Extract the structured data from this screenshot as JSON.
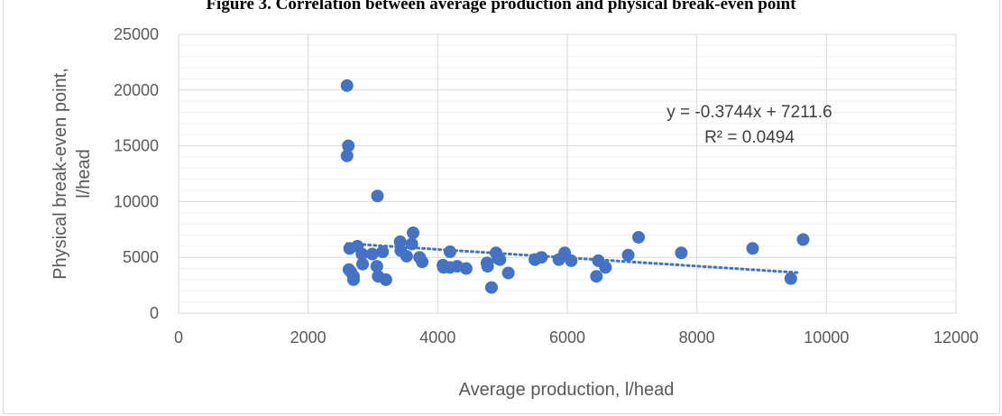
{
  "figure_title": "Figure 3. Correlation between average production and physical break-even point",
  "chart_data": {
    "type": "scatter",
    "title": "",
    "xlabel": "Average production, l/head",
    "ylabel": "Physical break-even point, l/head",
    "xlim": [
      0,
      12000
    ],
    "ylim": [
      0,
      25000
    ],
    "x_ticks": [
      0,
      2000,
      4000,
      6000,
      8000,
      10000,
      12000
    ],
    "y_ticks": [
      0,
      5000,
      10000,
      15000,
      20000,
      25000
    ],
    "grid": true,
    "marker_color": "#4472c4",
    "trendline": {
      "type": "linear",
      "slope": -0.3744,
      "intercept": 7211.6,
      "x_range": [
        2600,
        9600
      ],
      "equation": "y = -0.3744x + 7211.6",
      "r_squared": "R² = 0.0494"
    },
    "points": [
      [
        2600,
        20400
      ],
      [
        2620,
        15000
      ],
      [
        2600,
        14100
      ],
      [
        3070,
        10500
      ],
      [
        2640,
        5800
      ],
      [
        2760,
        6000
      ],
      [
        2830,
        5300
      ],
      [
        2840,
        4400
      ],
      [
        2630,
        3900
      ],
      [
        2660,
        3700
      ],
      [
        2700,
        3300
      ],
      [
        2700,
        3000
      ],
      [
        2990,
        5300
      ],
      [
        3060,
        4200
      ],
      [
        3080,
        3300
      ],
      [
        3150,
        5500
      ],
      [
        3200,
        3000
      ],
      [
        3420,
        6400
      ],
      [
        3430,
        5600
      ],
      [
        3520,
        5100
      ],
      [
        3600,
        6200
      ],
      [
        3620,
        7200
      ],
      [
        3720,
        5000
      ],
      [
        3760,
        4600
      ],
      [
        4080,
        4300
      ],
      [
        4090,
        4100
      ],
      [
        4190,
        5500
      ],
      [
        4190,
        4100
      ],
      [
        4300,
        4200
      ],
      [
        4440,
        4000
      ],
      [
        4760,
        4500
      ],
      [
        4770,
        4200
      ],
      [
        4830,
        2300
      ],
      [
        4900,
        5400
      ],
      [
        4930,
        4900
      ],
      [
        4960,
        4800
      ],
      [
        5090,
        3600
      ],
      [
        5500,
        4800
      ],
      [
        5600,
        5000
      ],
      [
        5870,
        4800
      ],
      [
        5960,
        5400
      ],
      [
        6060,
        4700
      ],
      [
        6450,
        3300
      ],
      [
        6480,
        4700
      ],
      [
        6590,
        4100
      ],
      [
        6940,
        5200
      ],
      [
        7100,
        6800
      ],
      [
        7760,
        5400
      ],
      [
        8860,
        5800
      ],
      [
        9450,
        3100
      ],
      [
        9640,
        6600
      ]
    ]
  }
}
